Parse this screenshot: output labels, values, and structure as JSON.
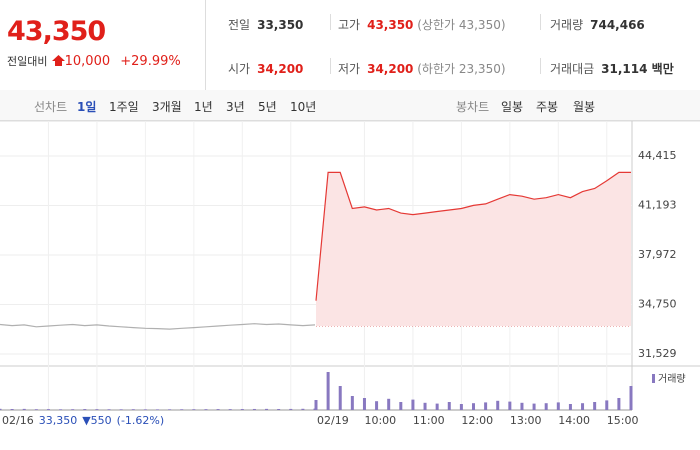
{
  "header": {
    "price": "43,350",
    "change_label": "전일대비",
    "change": "10,000",
    "rate": "+29.99%",
    "prev": {
      "label": "전일",
      "value": "33,350"
    },
    "high": {
      "label": "고가",
      "value": "43,350",
      "sub": "(상한가 43,350)"
    },
    "volume": {
      "label": "거래량",
      "value": "744,466"
    },
    "open": {
      "label": "시가",
      "value": "34,200"
    },
    "low": {
      "label": "저가",
      "value": "34,200",
      "sub": "(하한가 23,350)"
    },
    "amount": {
      "label": "거래대금",
      "value": "31,114 백만"
    }
  },
  "tabs": {
    "line_label": "선차트",
    "line": [
      "1일",
      "1주일",
      "3개월",
      "1년",
      "3년",
      "5년",
      "10년"
    ],
    "selected": 0,
    "candle_label": "봉차트",
    "candle": [
      "일봉",
      "주봉",
      "월봉"
    ]
  },
  "footer": {
    "date": "02/16",
    "price": "33,350",
    "change": "▼550",
    "rate": "(-1.62%)"
  },
  "chart_data": {
    "type": "line",
    "ylim": [
      31008,
      46237
    ],
    "yticks": [
      {
        "value": 31529,
        "label": "31,529"
      },
      {
        "value": 34750,
        "label": "34,750"
      },
      {
        "value": 37972,
        "label": "37,972"
      },
      {
        "value": 41193,
        "label": "41,193"
      },
      {
        "value": 44415,
        "label": "44,415"
      }
    ],
    "xticks": [
      "10:00",
      "11:00",
      "12:00",
      "13:00",
      "14:00",
      "15:00"
    ],
    "prev_close": 33350,
    "volume_label": "거래량",
    "volume_color": "#8878c0",
    "series": [
      {
        "date": "02/16",
        "color": "#b0b0b0",
        "x": [
          "09:00",
          "09:15",
          "09:30",
          "09:45",
          "10:00",
          "10:15",
          "10:30",
          "10:45",
          "11:00",
          "11:15",
          "11:30",
          "11:45",
          "12:00",
          "12:15",
          "12:30",
          "12:45",
          "13:00",
          "13:15",
          "13:30",
          "13:45",
          "14:00",
          "14:15",
          "14:30",
          "14:45",
          "15:00",
          "15:15",
          "15:30"
        ],
        "values": [
          33450,
          33380,
          33420,
          33300,
          33350,
          33400,
          33450,
          33380,
          33420,
          33350,
          33300,
          33250,
          33200,
          33180,
          33150,
          33200,
          33250,
          33300,
          33350,
          33400,
          33450,
          33500,
          33450,
          33480,
          33420,
          33380,
          33420
        ],
        "volume": [
          300,
          250,
          280,
          200,
          220,
          180,
          200,
          240,
          210,
          190,
          180,
          200,
          170,
          160,
          180,
          190,
          200,
          210,
          230,
          220,
          240,
          260,
          280,
          250,
          270,
          300,
          350
        ]
      },
      {
        "date": "02/19",
        "color": "#e53935",
        "fill": "#fbe4e4",
        "x": [
          "09:00",
          "09:15",
          "09:30",
          "09:45",
          "10:00",
          "10:15",
          "10:30",
          "10:45",
          "11:00",
          "11:15",
          "11:30",
          "11:45",
          "12:00",
          "12:15",
          "12:30",
          "12:45",
          "13:00",
          "13:15",
          "13:30",
          "13:45",
          "14:00",
          "14:15",
          "14:30",
          "14:45",
          "15:00",
          "15:15",
          "15:30"
        ],
        "values": [
          35000,
          43350,
          43350,
          41000,
          41100,
          40900,
          41000,
          40700,
          40600,
          40700,
          40800,
          40900,
          41000,
          41200,
          41300,
          41600,
          41900,
          41800,
          41600,
          41700,
          41900,
          41700,
          42100,
          42300,
          42800,
          43350,
          43350
        ],
        "volume": [
          2500,
          9500,
          6000,
          3500,
          3000,
          2200,
          2800,
          2000,
          2600,
          1800,
          1600,
          2000,
          1500,
          1700,
          1900,
          2300,
          2100,
          1800,
          1600,
          1700,
          1900,
          1500,
          1700,
          2000,
          2400,
          3000,
          6000
        ]
      }
    ]
  }
}
